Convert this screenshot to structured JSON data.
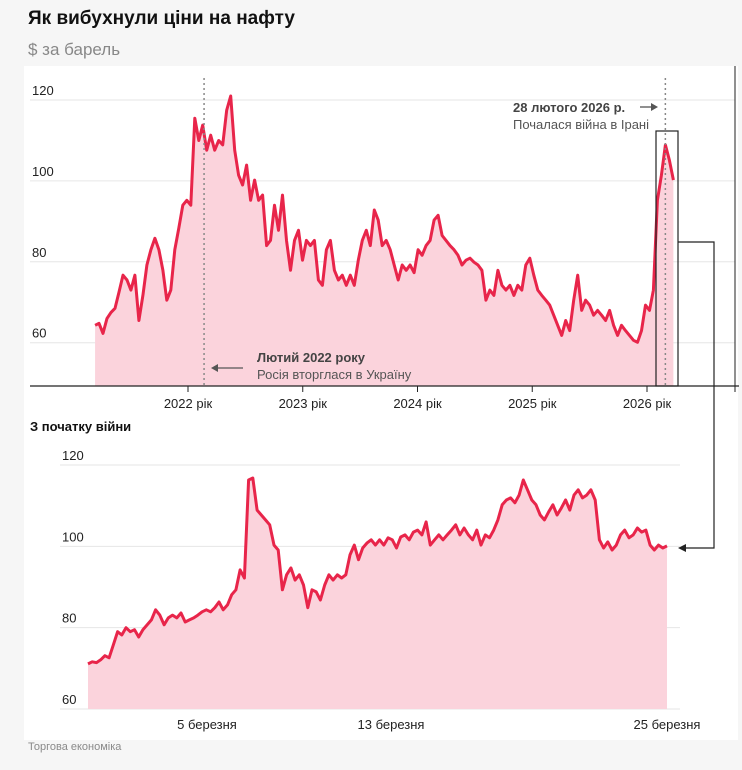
{
  "title": "Як вибухнули ціни на нафту",
  "subtitle": "$ за барель",
  "source": "Торгова економіка",
  "colors": {
    "line": "#e8254a",
    "fill": "#fbd3dc",
    "grid": "#e6e6e6"
  },
  "chart_data": [
    {
      "type": "area",
      "title": "Як вибухнули ціни на нафту",
      "ylabel": "$ за барель",
      "ylim": [
        49.3,
        120
      ],
      "yticks": [
        60,
        80,
        100,
        120
      ],
      "xlim": [
        2021.19,
        2026.23
      ],
      "xticks": [
        {
          "value": 2022,
          "label": "2022 рік"
        },
        {
          "value": 2023,
          "label": "2023 рік"
        },
        {
          "value": 2024,
          "label": "2024 рік"
        },
        {
          "value": 2025,
          "label": "2025 рік"
        },
        {
          "value": 2026,
          "label": "2026 рік"
        }
      ],
      "annotations": [
        {
          "x": 2022.14,
          "title": "Лютий 2022 року",
          "text": "Росія вторглася в Україну"
        },
        {
          "x": 2026.16,
          "title": "28 лютого 2026 р.",
          "text": "Почалася війна в Ірані"
        }
      ],
      "values": [
        64.3,
        64.8,
        62.3,
        66,
        67.5,
        68.5,
        72.5,
        76.7,
        75.5,
        73,
        76.7,
        65.5,
        71.7,
        79.2,
        83,
        85.8,
        83,
        77.9,
        70.5,
        73,
        83,
        88.3,
        94,
        95.2,
        94,
        115.5,
        110,
        113.8,
        107.6,
        111.3,
        107.6,
        110,
        108.9,
        117.5,
        121,
        107.6,
        101.4,
        99,
        103.9,
        95.2,
        100.2,
        95.2,
        96.5,
        84,
        85.3,
        94,
        87.8,
        96.5,
        85.3,
        77.9,
        85.3,
        87.8,
        80.4,
        85.3,
        84,
        85.3,
        75.5,
        74.2,
        83,
        85.3,
        77.9,
        75.5,
        76.7,
        74.2,
        76.7,
        74.2,
        80.4,
        85.3,
        87.8,
        84,
        92.8,
        90.3,
        84,
        85.3,
        83,
        79.2,
        75.5,
        79.2,
        77.9,
        79.2,
        77.3,
        83,
        81.6,
        84,
        85.3,
        90.3,
        91.5,
        86.5,
        85.3,
        84,
        83,
        81.6,
        79.2,
        80.4,
        80.9,
        79.9,
        79.2,
        77.9,
        70.5,
        73,
        71.7,
        77.9,
        74.2,
        73,
        74.2,
        71.7,
        74.2,
        73,
        79.2,
        80.9,
        76.7,
        73,
        71.7,
        70.5,
        69.3,
        66.8,
        64.3,
        61.8,
        65.5,
        63,
        70.5,
        76.7,
        68,
        70.5,
        69.3,
        66.8,
        68,
        66.8,
        65.5,
        68,
        64.3,
        61.8,
        64.3,
        63,
        61.8,
        60.6,
        60.1,
        63,
        69.3,
        68,
        73,
        95.2,
        101.4,
        108.9,
        105.1,
        100.2
      ]
    },
    {
      "type": "area",
      "title": "З початку війни",
      "ylim": [
        60,
        122
      ],
      "yticks": [
        60,
        80,
        100,
        120
      ],
      "xlim_days_from_5_march": [
        -5.2,
        20
      ],
      "xticks": [
        {
          "value": 0,
          "label": "5 березня"
        },
        {
          "value": 8,
          "label": "13 березня"
        },
        {
          "value": 20,
          "label": "25 березня"
        }
      ],
      "values": [
        71.1,
        71.6,
        71.4,
        72.1,
        73.1,
        72.6,
        75.8,
        79,
        78.2,
        80,
        79,
        79.5,
        77.7,
        79.5,
        80.7,
        81.9,
        84.4,
        83.1,
        80.7,
        82.4,
        83.1,
        82.4,
        83.6,
        81.4,
        81.9,
        82.4,
        83.1,
        83.9,
        84.4,
        83.9,
        84.9,
        86.3,
        84.4,
        85.6,
        88.1,
        89.3,
        94.2,
        92.2,
        116.3,
        116.8,
        108.9,
        107.7,
        106.5,
        105.3,
        100.3,
        99.1,
        89.3,
        93,
        94.7,
        91.7,
        93,
        90.5,
        84.9,
        89.3,
        88.8,
        86.8,
        90.5,
        93,
        91.7,
        93,
        92.2,
        93,
        97.9,
        100.3,
        96.7,
        99.6,
        100.8,
        101.6,
        100.3,
        101.6,
        100.3,
        102.1,
        101.6,
        99.6,
        102.3,
        102.8,
        101.6,
        103.5,
        104,
        102.8,
        106,
        100.3,
        101.6,
        102.8,
        101.6,
        102.8,
        104,
        105.3,
        102.8,
        104.5,
        102.8,
        101.6,
        104,
        100.3,
        102.8,
        102.1,
        104,
        106.5,
        110.2,
        111.4,
        111.9,
        110.7,
        112.6,
        116.3,
        113.9,
        111.4,
        110.2,
        107.7,
        106.5,
        108.5,
        110.2,
        107.7,
        109.4,
        111.4,
        108.9,
        112.6,
        113.9,
        111.9,
        112.6,
        113.9,
        111.4,
        101.6,
        99.6,
        101.1,
        99.1,
        100.3,
        102.8,
        104,
        102.1,
        102.8,
        104.5,
        103.5,
        104,
        100.3,
        99.1,
        100.3,
        99.6,
        100.1
      ]
    }
  ],
  "section2_title": "З початку війни"
}
